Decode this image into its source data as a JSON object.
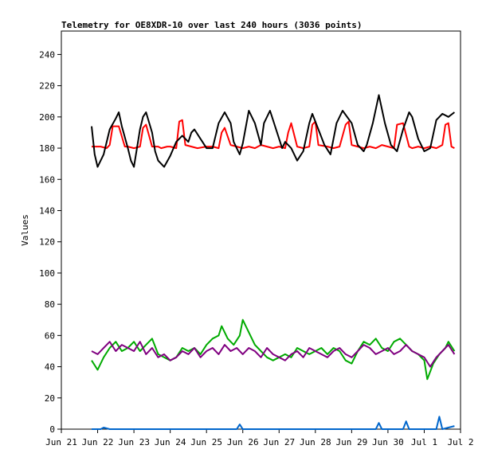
{
  "chart_data": {
    "type": "line",
    "title": "Telemetry for OE8XDR-10 over last 240 hours (3036 points)",
    "xlabel": "",
    "ylabel": "Values",
    "ylim": [
      0,
      255
    ],
    "yticks": [
      0,
      20,
      40,
      60,
      80,
      100,
      120,
      140,
      160,
      180,
      200,
      220,
      240
    ],
    "xlim": [
      0,
      264
    ],
    "xticks": [
      {
        "label": "Jun 21",
        "hour": 0
      },
      {
        "label": "Jun 22",
        "hour": 24
      },
      {
        "label": "Jun 23",
        "hour": 48
      },
      {
        "label": "Jun 24",
        "hour": 72
      },
      {
        "label": "Jun 25",
        "hour": 96
      },
      {
        "label": "Jun 26",
        "hour": 120
      },
      {
        "label": "Jun 27",
        "hour": 144
      },
      {
        "label": "Jun 28",
        "hour": 168
      },
      {
        "label": "Jun 29",
        "hour": 192
      },
      {
        "label": "Jun 30",
        "hour": 216
      },
      {
        "label": "Jul 1",
        "hour": 240
      },
      {
        "label": "Jul 2",
        "hour": 264
      }
    ],
    "grid": false,
    "series": [
      {
        "color": "#ff0000",
        "x": [
          20,
          26,
          30,
          32,
          34,
          38,
          42,
          44,
          48,
          52,
          54,
          56,
          60,
          64,
          66,
          70,
          72,
          76,
          78,
          80,
          82,
          86,
          90,
          96,
          100,
          104,
          106,
          108,
          112,
          116,
          120,
          124,
          128,
          132,
          136,
          140,
          144,
          148,
          150,
          152,
          156,
          160,
          164,
          166,
          168,
          170,
          176,
          180,
          184,
          188,
          190,
          192,
          196,
          200,
          204,
          208,
          212,
          216,
          220,
          222,
          226,
          230,
          232,
          236,
          240,
          244,
          248,
          252,
          254,
          256,
          258,
          260
        ],
        "values": [
          181,
          181,
          180,
          182,
          194,
          194,
          181,
          181,
          180,
          181,
          193,
          195,
          181,
          181,
          180,
          181,
          181,
          180,
          197,
          198,
          182,
          181,
          180,
          181,
          181,
          180,
          190,
          193,
          182,
          181,
          180,
          181,
          180,
          182,
          181,
          180,
          181,
          180,
          190,
          196,
          181,
          180,
          181,
          195,
          197,
          182,
          181,
          180,
          181,
          195,
          197,
          182,
          181,
          180,
          181,
          180,
          182,
          181,
          180,
          195,
          196,
          181,
          180,
          181,
          180,
          181,
          180,
          182,
          195,
          196,
          181,
          180
        ]
      },
      {
        "color": "#000000",
        "x": [
          20,
          22,
          24,
          28,
          32,
          36,
          38,
          40,
          44,
          46,
          48,
          52,
          54,
          56,
          60,
          62,
          64,
          68,
          72,
          76,
          80,
          84,
          86,
          88,
          92,
          96,
          100,
          104,
          108,
          112,
          114,
          118,
          120,
          124,
          128,
          132,
          134,
          138,
          142,
          146,
          148,
          152,
          156,
          160,
          164,
          166,
          170,
          174,
          178,
          182,
          186,
          192,
          196,
          200,
          202,
          206,
          210,
          214,
          218,
          222,
          226,
          230,
          232,
          236,
          240,
          244,
          248,
          252,
          256,
          260
        ],
        "values": [
          194,
          176,
          168,
          176,
          192,
          199,
          203,
          194,
          180,
          172,
          168,
          192,
          200,
          203,
          190,
          178,
          172,
          168,
          175,
          184,
          188,
          184,
          190,
          192,
          186,
          180,
          180,
          196,
          203,
          196,
          184,
          176,
          183,
          204,
          196,
          182,
          196,
          204,
          192,
          180,
          184,
          180,
          172,
          178,
          196,
          202,
          192,
          182,
          176,
          196,
          204,
          196,
          182,
          178,
          182,
          196,
          214,
          196,
          182,
          178,
          192,
          203,
          200,
          186,
          178,
          180,
          198,
          202,
          200,
          203
        ]
      },
      {
        "color": "#00aa00",
        "x": [
          20,
          24,
          28,
          32,
          36,
          40,
          44,
          48,
          52,
          56,
          60,
          64,
          68,
          72,
          76,
          80,
          84,
          88,
          92,
          96,
          100,
          104,
          106,
          110,
          114,
          118,
          120,
          124,
          128,
          132,
          136,
          140,
          144,
          148,
          152,
          156,
          160,
          164,
          168,
          172,
          176,
          180,
          184,
          188,
          192,
          196,
          200,
          204,
          208,
          212,
          216,
          220,
          224,
          228,
          232,
          236,
          240,
          242,
          246,
          250,
          254,
          256,
          260
        ],
        "values": [
          44,
          38,
          46,
          52,
          56,
          50,
          52,
          56,
          50,
          54,
          58,
          48,
          46,
          44,
          46,
          52,
          50,
          52,
          48,
          54,
          58,
          60,
          66,
          58,
          54,
          60,
          70,
          62,
          54,
          50,
          46,
          44,
          46,
          48,
          46,
          52,
          50,
          48,
          50,
          52,
          48,
          52,
          50,
          44,
          42,
          50,
          56,
          54,
          58,
          52,
          50,
          56,
          58,
          54,
          50,
          48,
          44,
          32,
          42,
          48,
          52,
          56,
          50
        ]
      },
      {
        "color": "#800080",
        "x": [
          20,
          24,
          28,
          32,
          36,
          40,
          44,
          48,
          52,
          56,
          60,
          64,
          68,
          72,
          76,
          80,
          84,
          88,
          92,
          96,
          100,
          104,
          108,
          112,
          116,
          120,
          124,
          128,
          132,
          136,
          140,
          144,
          148,
          152,
          156,
          160,
          164,
          168,
          172,
          176,
          180,
          184,
          188,
          192,
          196,
          200,
          204,
          208,
          212,
          216,
          220,
          224,
          228,
          232,
          236,
          240,
          244,
          248,
          252,
          256,
          260
        ],
        "values": [
          50,
          48,
          52,
          56,
          50,
          54,
          52,
          50,
          56,
          48,
          52,
          46,
          48,
          44,
          46,
          50,
          48,
          52,
          46,
          50,
          52,
          48,
          54,
          50,
          52,
          48,
          52,
          50,
          46,
          52,
          48,
          46,
          44,
          48,
          50,
          46,
          52,
          50,
          48,
          46,
          50,
          52,
          48,
          46,
          50,
          54,
          52,
          48,
          50,
          52,
          48,
          50,
          54,
          50,
          48,
          46,
          40,
          46,
          50,
          54,
          48
        ]
      },
      {
        "color": "#0066cc",
        "x": [
          20,
          26,
          28,
          32,
          40,
          48,
          56,
          64,
          72,
          76,
          80,
          88,
          96,
          104,
          112,
          116,
          118,
          120,
          128,
          136,
          144,
          152,
          160,
          168,
          176,
          184,
          192,
          200,
          208,
          210,
          212,
          216,
          220,
          226,
          228,
          230,
          236,
          240,
          244,
          248,
          250,
          252,
          256,
          260
        ],
        "values": [
          0,
          0,
          1,
          0,
          0,
          0,
          0,
          0,
          0,
          0,
          0,
          0,
          0,
          0,
          0,
          0,
          3,
          0,
          0,
          0,
          0,
          0,
          0,
          0,
          0,
          0,
          0,
          0,
          0,
          4,
          0,
          0,
          0,
          0,
          5,
          0,
          0,
          0,
          0,
          0,
          8,
          0,
          1,
          2
        ]
      }
    ]
  }
}
